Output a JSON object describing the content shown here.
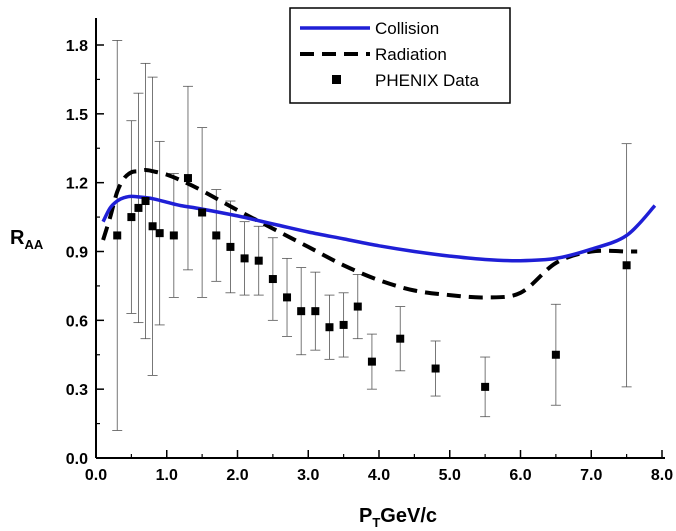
{
  "chart_data": {
    "type": "scatter",
    "xlim": [
      0,
      8
    ],
    "ylim": [
      0,
      1.95
    ],
    "x_ticks": [
      "0.0",
      "1.0",
      "2.0",
      "3.0",
      "4.0",
      "5.0",
      "6.0",
      "7.0",
      "8.0"
    ],
    "y_ticks": [
      "0.0",
      "0.3",
      "0.6",
      "0.9",
      "1.2",
      "1.5",
      "1.8"
    ],
    "xlabel": {
      "main": "P",
      "sub": "T",
      "rest": "GeV/c"
    },
    "ylabel": {
      "main": "R",
      "sub": "AA"
    },
    "grid": false,
    "legend_position": "top-right",
    "series": [
      {
        "name": "Collision",
        "kind": "line",
        "color": "#1f1fd6",
        "x": [
          0.1,
          0.2,
          0.3,
          0.4,
          0.5,
          0.6,
          0.8,
          1.0,
          1.2,
          1.5,
          2.0,
          2.5,
          3.0,
          3.5,
          4.0,
          4.5,
          5.0,
          5.5,
          6.0,
          6.5,
          7.0,
          7.5,
          7.9
        ],
        "y": [
          1.03,
          1.09,
          1.12,
          1.135,
          1.14,
          1.138,
          1.13,
          1.115,
          1.1,
          1.085,
          1.055,
          1.02,
          0.985,
          0.955,
          0.925,
          0.9,
          0.88,
          0.865,
          0.86,
          0.87,
          0.91,
          0.97,
          1.1
        ]
      },
      {
        "name": "Radiation",
        "kind": "dashed-line",
        "color": "#000000",
        "x": [
          0.1,
          0.2,
          0.3,
          0.4,
          0.5,
          0.6,
          0.7,
          0.8,
          1.0,
          1.2,
          1.5,
          2.0,
          2.5,
          3.0,
          3.5,
          4.0,
          4.5,
          5.0,
          5.5,
          6.0,
          6.5,
          7.0,
          7.5,
          7.65
        ],
        "y": [
          0.95,
          1.05,
          1.16,
          1.22,
          1.245,
          1.25,
          1.255,
          1.25,
          1.235,
          1.21,
          1.165,
          1.08,
          1.0,
          0.92,
          0.84,
          0.775,
          0.73,
          0.71,
          0.7,
          0.72,
          0.85,
          0.9,
          0.9,
          0.9
        ]
      },
      {
        "name": "PHENIX Data",
        "kind": "points",
        "color": "#000000",
        "x": [
          0.3,
          0.5,
          0.6,
          0.7,
          0.8,
          0.9,
          1.1,
          1.3,
          1.5,
          1.7,
          1.9,
          2.1,
          2.3,
          2.5,
          2.7,
          2.9,
          3.1,
          3.3,
          3.5,
          3.7,
          3.9,
          4.3,
          4.8,
          5.5,
          6.5,
          7.5
        ],
        "y": [
          0.97,
          1.05,
          1.09,
          1.12,
          1.01,
          0.98,
          0.97,
          1.22,
          1.07,
          0.97,
          0.92,
          0.87,
          0.86,
          0.78,
          0.7,
          0.64,
          0.64,
          0.57,
          0.58,
          0.66,
          0.42,
          0.52,
          0.39,
          0.31,
          0.45,
          0.84
        ],
        "err": [
          0.85,
          0.42,
          0.5,
          0.6,
          0.65,
          0.4,
          0.27,
          0.4,
          0.37,
          0.2,
          0.2,
          0.16,
          0.15,
          0.18,
          0.17,
          0.19,
          0.17,
          0.14,
          0.14,
          0.14,
          0.12,
          0.14,
          0.12,
          0.13,
          0.22,
          0.53
        ]
      }
    ]
  }
}
